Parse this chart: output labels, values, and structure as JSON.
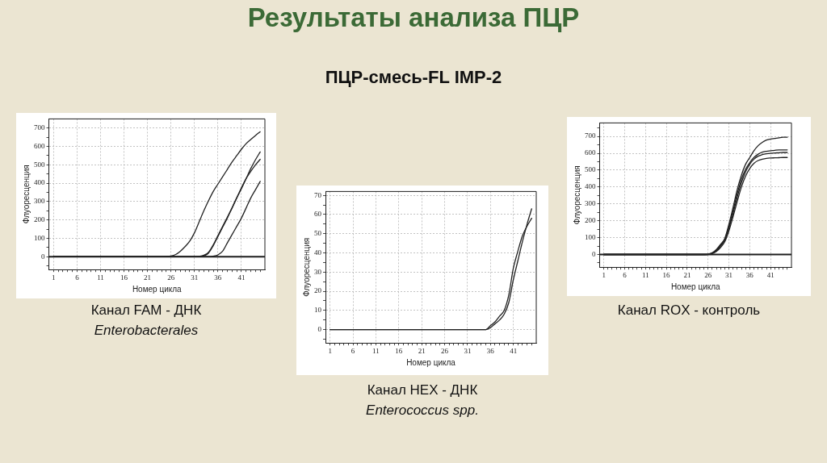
{
  "chart_data": [
    {
      "type": "line",
      "xlabel": "Номер цикла",
      "ylabel": "Флуоресценция",
      "annotations": [
        "Канал FAM - ДНК",
        "Enterobacterales"
      ],
      "x": [
        1,
        2,
        3,
        4,
        5,
        6,
        7,
        8,
        9,
        10,
        11,
        12,
        13,
        14,
        15,
        16,
        17,
        18,
        19,
        20,
        21,
        22,
        23,
        24,
        25,
        26,
        27,
        28,
        29,
        30,
        31,
        32,
        33,
        34,
        35,
        36,
        37,
        38,
        39,
        40,
        41,
        42,
        43,
        44,
        45
      ],
      "series": [
        {
          "color": "#222222",
          "values": [
            0,
            0,
            0,
            0,
            0,
            0,
            0,
            0,
            0,
            0,
            0,
            0,
            0,
            0,
            0,
            0,
            0,
            0,
            0,
            0,
            0,
            0,
            0,
            0,
            1,
            4,
            12,
            30,
            55,
            85,
            130,
            190,
            250,
            305,
            355,
            395,
            435,
            475,
            515,
            550,
            585,
            615,
            638,
            660,
            680
          ]
        },
        {
          "color": "#222222",
          "values": [
            0,
            0,
            0,
            0,
            0,
            0,
            0,
            0,
            0,
            0,
            0,
            0,
            0,
            0,
            0,
            0,
            0,
            0,
            0,
            0,
            0,
            0,
            0,
            0,
            0,
            0,
            0,
            0,
            0,
            0,
            0,
            2,
            8,
            25,
            65,
            115,
            165,
            215,
            265,
            320,
            370,
            425,
            480,
            528,
            570
          ]
        },
        {
          "color": "#222222",
          "values": [
            0,
            0,
            0,
            0,
            0,
            0,
            0,
            0,
            0,
            0,
            0,
            0,
            0,
            0,
            0,
            0,
            0,
            0,
            0,
            0,
            0,
            0,
            0,
            0,
            0,
            0,
            0,
            0,
            0,
            0,
            0,
            1,
            5,
            20,
            60,
            110,
            160,
            210,
            265,
            320,
            375,
            425,
            465,
            500,
            530
          ]
        },
        {
          "color": "#222222",
          "values": [
            0,
            0,
            0,
            0,
            0,
            0,
            0,
            0,
            0,
            0,
            0,
            0,
            0,
            0,
            0,
            0,
            0,
            0,
            0,
            0,
            0,
            0,
            0,
            0,
            0,
            0,
            0,
            0,
            0,
            0,
            0,
            0,
            0,
            0,
            3,
            10,
            30,
            75,
            120,
            165,
            210,
            265,
            320,
            365,
            410
          ]
        }
      ],
      "xlim": [
        0,
        46
      ],
      "ylim": [
        -70,
        750
      ],
      "xticks": [
        1,
        {
          "value": 2,
          "label": null
        },
        {
          "value": 3,
          "label": null
        },
        {
          "value": 4,
          "label": null
        },
        {
          "value": 5,
          "label": null
        },
        6,
        {
          "value": 7,
          "label": null
        },
        {
          "value": 8,
          "label": null
        },
        {
          "value": 9,
          "label": null
        },
        {
          "value": 10,
          "label": null
        },
        11,
        {
          "value": 12,
          "label": null
        },
        {
          "value": 13,
          "label": null
        },
        {
          "value": 14,
          "label": null
        },
        {
          "value": 15,
          "label": null
        },
        16,
        {
          "value": 17,
          "label": null
        },
        {
          "value": 18,
          "label": null
        },
        {
          "value": 19,
          "label": null
        },
        {
          "value": 20,
          "label": null
        },
        21,
        {
          "value": 22,
          "label": null
        },
        {
          "value": 23,
          "label": null
        },
        {
          "value": 24,
          "label": null
        },
        {
          "value": 25,
          "label": null
        },
        26,
        {
          "value": 27,
          "label": null
        },
        {
          "value": 28,
          "label": null
        },
        {
          "value": 29,
          "label": null
        },
        {
          "value": 30,
          "label": null
        },
        31,
        {
          "value": 32,
          "label": null
        },
        {
          "value": 33,
          "label": null
        },
        {
          "value": 34,
          "label": null
        },
        {
          "value": 35,
          "label": null
        },
        36,
        {
          "value": 37,
          "label": null
        },
        {
          "value": 38,
          "label": null
        },
        {
          "value": 39,
          "label": null
        },
        {
          "value": 40,
          "label": null
        },
        41,
        {
          "value": 42,
          "label": null
        },
        {
          "value": 43,
          "label": null
        },
        {
          "value": 44,
          "label": null
        },
        {
          "value": 45,
          "label": null
        }
      ],
      "yticks": [
        {
          "value": -50,
          "label": null
        },
        0,
        {
          "value": 50,
          "label": null
        },
        100,
        {
          "value": 150,
          "label": null
        },
        200,
        {
          "value": 250,
          "label": null
        },
        300,
        {
          "value": 350,
          "label": null
        },
        400,
        {
          "value": 450,
          "label": null
        },
        500,
        {
          "value": 550,
          "label": null
        },
        600,
        {
          "value": 650,
          "label": null
        },
        700
      ],
      "grid": true,
      "marker": "none",
      "ref_lines": [
        {
          "axis": "y",
          "value": 0
        }
      ]
    },
    {
      "type": "line",
      "title": "Результаты анализа ПЦР",
      "subtitle": "ПЦР-смесь-FL IMP-2",
      "xlabel": "Номер цикла",
      "ylabel": "Флуоресценция",
      "annotations": [
        "Канал HEX - ДНК",
        "Enterococcus spp."
      ],
      "x": [
        1,
        2,
        3,
        4,
        5,
        6,
        7,
        8,
        9,
        10,
        11,
        12,
        13,
        14,
        15,
        16,
        17,
        18,
        19,
        20,
        21,
        22,
        23,
        24,
        25,
        26,
        27,
        28,
        29,
        30,
        31,
        32,
        33,
        34,
        35,
        36,
        37,
        38,
        39,
        40,
        41,
        42,
        43,
        44,
        45
      ],
      "series": [
        {
          "color": "#222222",
          "values": [
            0,
            0,
            0,
            0,
            0,
            0,
            0,
            0,
            0,
            0,
            0,
            0,
            0,
            0,
            0,
            0,
            0,
            0,
            0,
            0,
            0,
            0,
            0,
            0,
            0,
            0,
            0,
            0,
            0,
            0,
            0,
            0,
            0,
            0,
            0,
            2,
            4,
            7,
            10,
            18,
            32,
            41,
            49,
            54,
            58
          ]
        },
        {
          "color": "#222222",
          "values": [
            0,
            0,
            0,
            0,
            0,
            0,
            0,
            0,
            0,
            0,
            0,
            0,
            0,
            0,
            0,
            0,
            0,
            0,
            0,
            0,
            0,
            0,
            0,
            0,
            0,
            0,
            0,
            0,
            0,
            0,
            0,
            0,
            0,
            0,
            0,
            1,
            3,
            5,
            8,
            14,
            26,
            36,
            46,
            55,
            63
          ]
        }
      ],
      "xlim": [
        0,
        46
      ],
      "ylim": [
        -7,
        72
      ],
      "xticks": [
        1,
        {
          "value": 2,
          "label": null
        },
        {
          "value": 3,
          "label": null
        },
        {
          "value": 4,
          "label": null
        },
        {
          "value": 5,
          "label": null
        },
        6,
        {
          "value": 7,
          "label": null
        },
        {
          "value": 8,
          "label": null
        },
        {
          "value": 9,
          "label": null
        },
        {
          "value": 10,
          "label": null
        },
        11,
        {
          "value": 12,
          "label": null
        },
        {
          "value": 13,
          "label": null
        },
        {
          "value": 14,
          "label": null
        },
        {
          "value": 15,
          "label": null
        },
        16,
        {
          "value": 17,
          "label": null
        },
        {
          "value": 18,
          "label": null
        },
        {
          "value": 19,
          "label": null
        },
        {
          "value": 20,
          "label": null
        },
        21,
        {
          "value": 22,
          "label": null
        },
        {
          "value": 23,
          "label": null
        },
        {
          "value": 24,
          "label": null
        },
        {
          "value": 25,
          "label": null
        },
        26,
        {
          "value": 27,
          "label": null
        },
        {
          "value": 28,
          "label": null
        },
        {
          "value": 29,
          "label": null
        },
        {
          "value": 30,
          "label": null
        },
        31,
        {
          "value": 32,
          "label": null
        },
        {
          "value": 33,
          "label": null
        },
        {
          "value": 34,
          "label": null
        },
        {
          "value": 35,
          "label": null
        },
        36,
        {
          "value": 37,
          "label": null
        },
        {
          "value": 38,
          "label": null
        },
        {
          "value": 39,
          "label": null
        },
        {
          "value": 40,
          "label": null
        },
        41,
        {
          "value": 42,
          "label": null
        },
        {
          "value": 43,
          "label": null
        },
        {
          "value": 44,
          "label": null
        },
        {
          "value": 45,
          "label": null
        }
      ],
      "yticks": [
        {
          "value": -5,
          "label": null
        },
        0,
        {
          "value": 5,
          "label": null
        },
        10,
        {
          "value": 15,
          "label": null
        },
        20,
        {
          "value": 25,
          "label": null
        },
        30,
        {
          "value": 35,
          "label": null
        },
        40,
        {
          "value": 45,
          "label": null
        },
        50,
        {
          "value": 55,
          "label": null
        },
        60,
        {
          "value": 65,
          "label": null
        },
        70
      ],
      "grid": true,
      "marker": "none"
    },
    {
      "type": "line",
      "xlabel": "Номер цикла",
      "ylabel": "Флуоресценция",
      "annotations": [
        "Канал ROX - контроль"
      ],
      "x": [
        1,
        2,
        3,
        4,
        5,
        6,
        7,
        8,
        9,
        10,
        11,
        12,
        13,
        14,
        15,
        16,
        17,
        18,
        19,
        20,
        21,
        22,
        23,
        24,
        25,
        26,
        27,
        28,
        29,
        30,
        31,
        32,
        33,
        34,
        35,
        36,
        37,
        38,
        39,
        40,
        41,
        42,
        43,
        44,
        45
      ],
      "series": [
        {
          "color": "#222222",
          "values": [
            0,
            0,
            0,
            0,
            0,
            0,
            0,
            0,
            0,
            0,
            0,
            0,
            0,
            0,
            0,
            0,
            0,
            0,
            0,
            0,
            0,
            0,
            0,
            0,
            0,
            2,
            10,
            30,
            60,
            95,
            180,
            280,
            385,
            470,
            535,
            575,
            615,
            645,
            665,
            678,
            684,
            688,
            692,
            695,
            695
          ]
        },
        {
          "color": "#222222",
          "values": [
            0,
            0,
            0,
            0,
            0,
            0,
            0,
            0,
            0,
            0,
            0,
            0,
            0,
            0,
            0,
            0,
            0,
            0,
            0,
            0,
            0,
            0,
            0,
            0,
            0,
            1,
            8,
            25,
            55,
            90,
            165,
            260,
            360,
            445,
            505,
            545,
            575,
            595,
            607,
            612,
            615,
            618,
            620,
            620,
            620
          ]
        },
        {
          "color": "#222222",
          "values": [
            0,
            0,
            0,
            0,
            0,
            0,
            0,
            0,
            0,
            0,
            0,
            0,
            0,
            0,
            0,
            0,
            0,
            0,
            0,
            0,
            0,
            0,
            0,
            0,
            0,
            1,
            7,
            22,
            50,
            85,
            155,
            245,
            340,
            425,
            490,
            535,
            565,
            583,
            592,
            597,
            600,
            602,
            603,
            605,
            605
          ]
        },
        {
          "color": "#222222",
          "values": [
            0,
            0,
            0,
            0,
            0,
            0,
            0,
            0,
            0,
            0,
            0,
            0,
            0,
            0,
            0,
            0,
            0,
            0,
            0,
            0,
            0,
            0,
            0,
            0,
            0,
            0,
            5,
            18,
            42,
            75,
            140,
            225,
            315,
            400,
            465,
            510,
            540,
            557,
            565,
            570,
            572,
            573,
            574,
            575,
            575
          ]
        }
      ],
      "xlim": [
        0,
        46
      ],
      "ylim": [
        -75,
        780
      ],
      "xticks": [
        1,
        {
          "value": 2,
          "label": null
        },
        {
          "value": 3,
          "label": null
        },
        {
          "value": 4,
          "label": null
        },
        {
          "value": 5,
          "label": null
        },
        6,
        {
          "value": 7,
          "label": null
        },
        {
          "value": 8,
          "label": null
        },
        {
          "value": 9,
          "label": null
        },
        {
          "value": 10,
          "label": null
        },
        11,
        {
          "value": 12,
          "label": null
        },
        {
          "value": 13,
          "label": null
        },
        {
          "value": 14,
          "label": null
        },
        {
          "value": 15,
          "label": null
        },
        16,
        {
          "value": 17,
          "label": null
        },
        {
          "value": 18,
          "label": null
        },
        {
          "value": 19,
          "label": null
        },
        {
          "value": 20,
          "label": null
        },
        21,
        {
          "value": 22,
          "label": null
        },
        {
          "value": 23,
          "label": null
        },
        {
          "value": 24,
          "label": null
        },
        {
          "value": 25,
          "label": null
        },
        26,
        {
          "value": 27,
          "label": null
        },
        {
          "value": 28,
          "label": null
        },
        {
          "value": 29,
          "label": null
        },
        {
          "value": 30,
          "label": null
        },
        31,
        {
          "value": 32,
          "label": null
        },
        {
          "value": 33,
          "label": null
        },
        {
          "value": 34,
          "label": null
        },
        {
          "value": 35,
          "label": null
        },
        36,
        {
          "value": 37,
          "label": null
        },
        {
          "value": 38,
          "label": null
        },
        {
          "value": 39,
          "label": null
        },
        {
          "value": 40,
          "label": null
        },
        41,
        {
          "value": 42,
          "label": null
        },
        {
          "value": 43,
          "label": null
        },
        {
          "value": 44,
          "label": null
        },
        {
          "value": 45,
          "label": null
        }
      ],
      "yticks": [
        {
          "value": -50,
          "label": null
        },
        0,
        {
          "value": 50,
          "label": null
        },
        100,
        {
          "value": 150,
          "label": null
        },
        200,
        {
          "value": 250,
          "label": null
        },
        300,
        {
          "value": 350,
          "label": null
        },
        400,
        {
          "value": 450,
          "label": null
        },
        500,
        {
          "value": 550,
          "label": null
        },
        600,
        {
          "value": 650,
          "label": null
        },
        700,
        {
          "value": 750,
          "label": null
        }
      ],
      "grid": true,
      "marker": "none",
      "ref_lines": [
        {
          "axis": "y",
          "value": 0
        }
      ]
    }
  ]
}
